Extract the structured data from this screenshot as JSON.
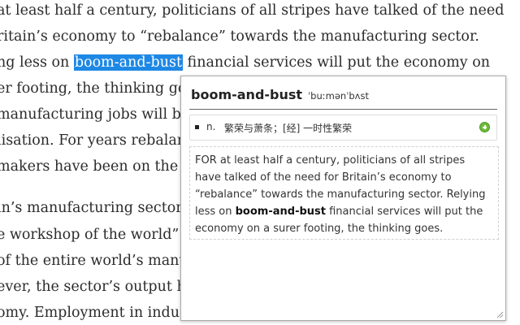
{
  "article": {
    "lines": [
      "at least half a century, politicians of all stripes have talked of the need",
      "ritain’s economy to “rebalance” towards the manufacturing sector.",
      "ng less on ",
      "er footing, the thinking go",
      "manufacturing jobs will b",
      "lisation. For years rebalan",
      "makers have been on the m",
      "in’s manufacturing sector",
      "e workshop of the world”.",
      "of the entire world’s manu",
      "ever, the sector’s output ha",
      "omy. Employment in indu"
    ],
    "highlighted": "boom-and-bust",
    "line3_rest": " financial services will put the economy on"
  },
  "popup": {
    "word": "boom-and-bust",
    "phonetic": "ˈbuːmənˈbʌst",
    "definition": {
      "pos": "n.",
      "text": "繁荣与萧条；[经] 一时性繁荣"
    },
    "context": {
      "before": "FOR at least half a century, politicians of all stripes have talked of the need for Britain’s economy to “rebalance” towards the manufacturing sector. Relying less on ",
      "bold": "boom-and-bust",
      "after": " financial services will put the economy on a surer footing, the thinking goes."
    },
    "icons": {
      "add": "add-plus-icon",
      "resize": "resize-grip-icon"
    },
    "colors": {
      "highlight": "#1e88e5",
      "add_button": "#6dbb3a"
    }
  }
}
